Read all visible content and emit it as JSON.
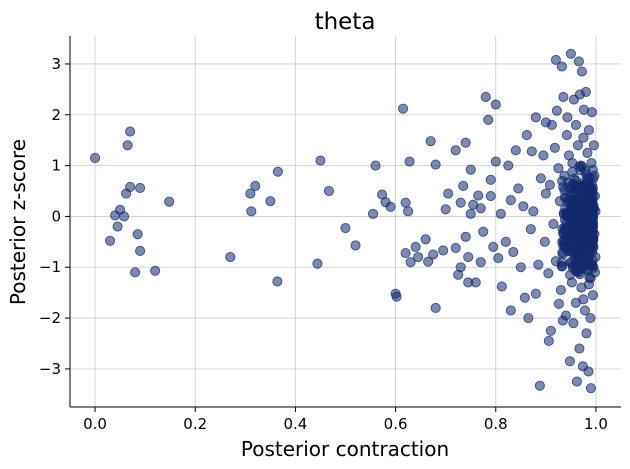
{
  "chart_data": {
    "type": "scatter",
    "title": "theta",
    "xlabel": "Posterior contraction",
    "ylabel": "Posterior z-score",
    "xlim": [
      -0.05,
      1.05
    ],
    "ylim": [
      -3.75,
      3.55
    ],
    "xticks": [
      0.0,
      0.2,
      0.4,
      0.6,
      0.8,
      1.0
    ],
    "xtick_labels": [
      "0.0",
      "0.2",
      "0.4",
      "0.6",
      "0.8",
      "1.0"
    ],
    "yticks": [
      -3,
      -2,
      -1,
      0,
      1,
      2,
      3
    ],
    "ytick_labels": [
      "−3",
      "−2",
      "−1",
      "0",
      "1",
      "2",
      "3"
    ],
    "grid": true,
    "marker_color": "#132a6e",
    "series": [
      {
        "points": [
          [
            0.0,
            1.15
          ],
          [
            0.07,
            1.67
          ],
          [
            0.065,
            1.4
          ],
          [
            0.07,
            0.58
          ],
          [
            0.09,
            0.56
          ],
          [
            0.062,
            0.45
          ],
          [
            0.04,
            0.02
          ],
          [
            0.05,
            0.13
          ],
          [
            0.058,
            0.0
          ],
          [
            0.045,
            -0.2
          ],
          [
            0.03,
            -0.48
          ],
          [
            0.085,
            -0.35
          ],
          [
            0.09,
            -0.68
          ],
          [
            0.08,
            -1.1
          ],
          [
            0.12,
            -1.07
          ],
          [
            0.148,
            0.29
          ],
          [
            0.27,
            -0.8
          ],
          [
            0.31,
            0.45
          ],
          [
            0.32,
            0.6
          ],
          [
            0.312,
            0.1
          ],
          [
            0.35,
            0.3
          ],
          [
            0.365,
            0.88
          ],
          [
            0.364,
            -1.28
          ],
          [
            0.444,
            -0.93
          ],
          [
            0.45,
            1.1
          ],
          [
            0.467,
            0.5
          ],
          [
            0.5,
            -0.23
          ],
          [
            0.52,
            -0.57
          ],
          [
            0.555,
            0.05
          ],
          [
            0.56,
            1.0
          ],
          [
            0.573,
            0.43
          ],
          [
            0.58,
            0.28
          ],
          [
            0.59,
            0.19
          ],
          [
            0.6,
            -1.52
          ],
          [
            0.602,
            -1.58
          ],
          [
            0.615,
            2.12
          ],
          [
            0.62,
            0.27
          ],
          [
            0.62,
            -0.72
          ],
          [
            0.625,
            0.1
          ],
          [
            0.628,
            1.08
          ],
          [
            0.63,
            -0.9
          ],
          [
            0.64,
            -0.6
          ],
          [
            0.645,
            -0.8
          ],
          [
            0.66,
            -0.45
          ],
          [
            0.665,
            -0.89
          ],
          [
            0.67,
            1.48
          ],
          [
            0.675,
            -0.75
          ],
          [
            0.68,
            1.02
          ],
          [
            0.68,
            -1.8
          ],
          [
            0.695,
            -0.67
          ],
          [
            0.7,
            0.14
          ],
          [
            0.705,
            0.45
          ],
          [
            0.72,
            1.3
          ],
          [
            0.72,
            -0.62
          ],
          [
            0.725,
            -1.15
          ],
          [
            0.73,
            0.27
          ],
          [
            0.73,
            -1.0
          ],
          [
            0.735,
            0.6
          ],
          [
            0.74,
            1.45
          ],
          [
            0.74,
            -0.4
          ],
          [
            0.745,
            -0.8
          ],
          [
            0.745,
            -1.3
          ],
          [
            0.75,
            0.92
          ],
          [
            0.75,
            0.05
          ],
          [
            0.755,
            0.23
          ],
          [
            0.76,
            -1.3
          ],
          [
            0.765,
            0.41
          ],
          [
            0.77,
            0.16
          ],
          [
            0.77,
            -0.9
          ],
          [
            0.775,
            -0.3
          ],
          [
            0.78,
            2.35
          ],
          [
            0.785,
            1.9
          ],
          [
            0.79,
            0.4
          ],
          [
            0.79,
            0.72
          ],
          [
            0.795,
            -0.6
          ],
          [
            0.8,
            2.2
          ],
          [
            0.8,
            1.08
          ],
          [
            0.805,
            -0.82
          ],
          [
            0.81,
            0.05
          ],
          [
            0.812,
            -1.38
          ],
          [
            0.82,
            -0.5
          ],
          [
            0.825,
            1.0
          ],
          [
            0.83,
            0.32
          ],
          [
            0.83,
            -1.85
          ],
          [
            0.835,
            -0.7
          ],
          [
            0.84,
            1.3
          ],
          [
            0.845,
            0.55
          ],
          [
            0.85,
            -1.0
          ],
          [
            0.855,
            0.2
          ],
          [
            0.858,
            -1.6
          ],
          [
            0.862,
            1.6
          ],
          [
            0.865,
            -2.0
          ],
          [
            0.87,
            -0.25
          ],
          [
            0.872,
            1.28
          ],
          [
            0.875,
            0.1
          ],
          [
            0.88,
            1.95
          ],
          [
            0.88,
            -1.52
          ],
          [
            0.885,
            -0.95
          ],
          [
            0.888,
            -3.33
          ],
          [
            0.89,
            0.75
          ],
          [
            0.895,
            1.2
          ],
          [
            0.898,
            -0.5
          ],
          [
            0.9,
            1.85
          ],
          [
            0.9,
            0.45
          ],
          [
            0.905,
            -1.12
          ],
          [
            0.906,
            -2.45
          ],
          [
            0.908,
            0.62
          ],
          [
            0.91,
            -2.25
          ],
          [
            0.912,
            1.8
          ],
          [
            0.915,
            -0.15
          ],
          [
            0.918,
            1.35
          ],
          [
            0.92,
            3.08
          ],
          [
            0.92,
            -0.88
          ],
          [
            0.922,
            2.08
          ],
          [
            0.925,
            0.95
          ],
          [
            0.926,
            -1.72
          ],
          [
            0.928,
            0.3
          ],
          [
            0.93,
            -1.45
          ],
          [
            0.932,
            2.95
          ],
          [
            0.934,
            -2.05
          ],
          [
            0.935,
            2.35
          ],
          [
            0.937,
            0.8
          ],
          [
            0.938,
            -0.6
          ],
          [
            0.94,
            -1.95
          ],
          [
            0.942,
            1.6
          ],
          [
            0.943,
            1.95
          ],
          [
            0.944,
            0.0
          ],
          [
            0.946,
            1.2
          ],
          [
            0.947,
            -0.3
          ],
          [
            0.948,
            -2.85
          ],
          [
            0.95,
            3.2
          ],
          [
            0.95,
            0.55
          ],
          [
            0.951,
            -0.9
          ],
          [
            0.952,
            -1.3
          ],
          [
            0.953,
            1.05
          ],
          [
            0.954,
            0.2
          ],
          [
            0.955,
            -2.1
          ],
          [
            0.956,
            2.3
          ],
          [
            0.957,
            -0.05
          ],
          [
            0.958,
            0.4
          ],
          [
            0.959,
            -0.5
          ],
          [
            0.96,
            1.8
          ],
          [
            0.96,
            -1.7
          ],
          [
            0.961,
            0.7
          ],
          [
            0.962,
            -3.25
          ],
          [
            0.963,
            -0.2
          ],
          [
            0.964,
            1.4
          ],
          [
            0.965,
            -1.05
          ],
          [
            0.966,
            3.05
          ],
          [
            0.966,
            0.1
          ],
          [
            0.967,
            -2.6
          ],
          [
            0.968,
            2.4
          ],
          [
            0.969,
            0.35
          ],
          [
            0.97,
            -0.7
          ],
          [
            0.97,
            1.0
          ],
          [
            0.971,
            -1.4
          ],
          [
            0.972,
            2.85
          ],
          [
            0.972,
            -0.4
          ],
          [
            0.973,
            0.6
          ],
          [
            0.974,
            -2.95
          ],
          [
            0.975,
            1.55
          ],
          [
            0.975,
            -0.15
          ],
          [
            0.976,
            2.1
          ],
          [
            0.977,
            0.25
          ],
          [
            0.978,
            -1.85
          ],
          [
            0.979,
            0.9
          ],
          [
            0.98,
            -0.85
          ],
          [
            0.98,
            2.45
          ],
          [
            0.981,
            -2.3
          ],
          [
            0.982,
            0.45
          ],
          [
            0.983,
            1.25
          ],
          [
            0.984,
            -0.55
          ],
          [
            0.985,
            -3.05
          ],
          [
            0.985,
            0.05
          ],
          [
            0.986,
            1.7
          ],
          [
            0.987,
            -1.2
          ],
          [
            0.988,
            -0.3
          ],
          [
            0.988,
            0.75
          ],
          [
            0.989,
            -2.0
          ],
          [
            0.99,
            0.3
          ],
          [
            0.99,
            -3.38
          ],
          [
            0.991,
            1.05
          ],
          [
            0.992,
            -0.95
          ],
          [
            0.992,
            2.05
          ],
          [
            0.993,
            -0.1
          ],
          [
            0.994,
            0.55
          ],
          [
            0.994,
            -1.55
          ],
          [
            0.995,
            -0.6
          ],
          [
            0.996,
            0.15
          ],
          [
            0.996,
            1.4
          ],
          [
            0.997,
            -0.35
          ],
          [
            0.997,
            0.8
          ],
          [
            0.998,
            -1.1
          ],
          [
            0.998,
            0.4
          ],
          [
            0.999,
            -0.8
          ],
          [
            0.999,
            0.1
          ]
        ],
        "dense_cluster": {
          "x_range": [
            0.93,
            0.995
          ],
          "y_range": [
            -2.2,
            1.9
          ],
          "count": 450
        }
      }
    ]
  }
}
